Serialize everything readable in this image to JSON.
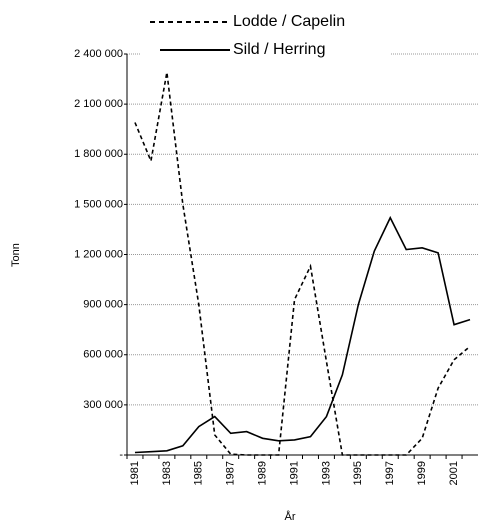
{
  "chart_data": {
    "type": "line",
    "categories": [
      "1981",
      null,
      "1983",
      null,
      "1985",
      null,
      "1987",
      null,
      "1989",
      null,
      "1991",
      null,
      "1993",
      null,
      "1995",
      null,
      "1997",
      null,
      "1999",
      null,
      "2001",
      null
    ],
    "series": [
      {
        "name": "Lodde / Capelin",
        "color": "#000000",
        "dash": true,
        "values": [
          1990000,
          1760000,
          2290000,
          1500000,
          900000,
          120000,
          5000,
          0,
          0,
          0,
          930000,
          1130000,
          560000,
          0,
          0,
          0,
          0,
          0,
          100000,
          400000,
          570000,
          650000
        ]
      },
      {
        "name": "Sild / Herring",
        "color": "#000000",
        "dash": false,
        "values": [
          15000,
          20000,
          25000,
          55000,
          170000,
          230000,
          130000,
          140000,
          100000,
          85000,
          90000,
          110000,
          230000,
          480000,
          900000,
          1220000,
          1420000,
          1230000,
          1240000,
          1210000,
          780000,
          810000
        ]
      }
    ],
    "ylabel": "Tonn",
    "xlabel": "År",
    "ylim": [
      0,
      2400000
    ],
    "yticks": [
      {
        "value": 0,
        "label": "-"
      },
      {
        "value": 300000,
        "label": "300 000"
      },
      {
        "value": 600000,
        "label": "600 000"
      },
      {
        "value": 900000,
        "label": "900 000"
      },
      {
        "value": 1200000,
        "label": "1 200 000"
      },
      {
        "value": 1500000,
        "label": "1 500 000"
      },
      {
        "value": 1800000,
        "label": "1 800 000"
      },
      {
        "value": 2100000,
        "label": "2 100 000"
      },
      {
        "value": 2400000,
        "label": "2 400 000"
      }
    ],
    "grid": true
  }
}
